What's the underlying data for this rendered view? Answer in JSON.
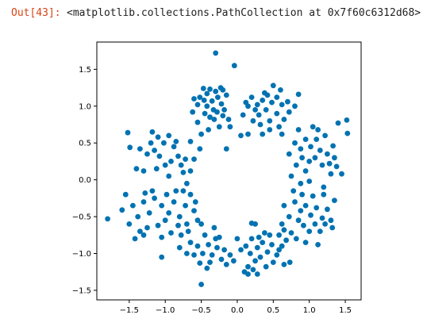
{
  "cell": {
    "prompt": "Out[43]:",
    "repr": "<matplotlib.collections.PathCollection at 0x7f60c6312d68>"
  },
  "colors": {
    "prompt": "#d84315",
    "marker": "#0072b2",
    "axes": "#000000"
  },
  "chart_data": {
    "type": "scatter",
    "title": "",
    "xlabel": "",
    "ylabel": "",
    "xlim": [
      -1.95,
      1.72
    ],
    "ylim": [
      -1.63,
      1.87
    ],
    "xticks": [
      -1.5,
      -1.0,
      -0.5,
      0.0,
      0.5,
      1.0,
      1.5
    ],
    "xtick_labels": [
      "−1.5",
      "−1.0",
      "−0.5",
      "0.0",
      "0.5",
      "1.0",
      "1.5"
    ],
    "yticks": [
      -1.5,
      -1.0,
      -0.5,
      0.0,
      0.5,
      1.0,
      1.5
    ],
    "ytick_labels": [
      "−1.5",
      "−1.0",
      "−0.5",
      "0.0",
      "0.5",
      "1.0",
      "1.5"
    ],
    "grid": false,
    "points": [
      {
        "x": -0.3,
        "y": 1.72
      },
      {
        "x": -0.04,
        "y": 1.55
      },
      {
        "x": -1.8,
        "y": -0.53
      },
      {
        "x": -1.6,
        "y": -0.41
      },
      {
        "x": -1.52,
        "y": 0.64
      },
      {
        "x": -1.49,
        "y": 0.44
      },
      {
        "x": 1.52,
        "y": 0.81
      },
      {
        "x": 1.53,
        "y": 0.63
      },
      {
        "x": 1.4,
        "y": 0.77
      },
      {
        "x": 1.45,
        "y": 0.08
      },
      {
        "x": 1.33,
        "y": 0.46
      },
      {
        "x": 1.38,
        "y": 0.18
      },
      {
        "x": -0.5,
        "y": -1.42
      },
      {
        "x": -0.52,
        "y": -1.13
      },
      {
        "x": -1.05,
        "y": -1.05
      },
      {
        "x": 0.15,
        "y": -1.28
      },
      {
        "x": 0.1,
        "y": -1.25
      },
      {
        "x": 0.28,
        "y": -1.28
      },
      {
        "x": 0.2,
        "y": -0.59
      },
      {
        "x": 0.25,
        "y": -0.6
      },
      {
        "x": 0.65,
        "y": -1.15
      },
      {
        "x": 0.73,
        "y": -1.12
      },
      {
        "x": -0.52,
        "y": 1.12
      },
      {
        "x": -0.46,
        "y": 1.08
      },
      {
        "x": -0.42,
        "y": 1.0
      },
      {
        "x": -0.35,
        "y": 1.07
      },
      {
        "x": -0.3,
        "y": 1.2
      },
      {
        "x": -0.27,
        "y": 1.12
      },
      {
        "x": -0.22,
        "y": 1.03
      },
      {
        "x": -0.18,
        "y": 0.95
      },
      {
        "x": -0.38,
        "y": 1.23
      },
      {
        "x": -0.47,
        "y": 1.24
      },
      {
        "x": -0.55,
        "y": 1.02
      },
      {
        "x": -0.6,
        "y": 1.1
      },
      {
        "x": -0.45,
        "y": 0.9
      },
      {
        "x": -0.32,
        "y": 0.82
      },
      {
        "x": -0.25,
        "y": 0.72
      },
      {
        "x": -0.4,
        "y": 0.68
      },
      {
        "x": -0.55,
        "y": 0.78
      },
      {
        "x": -0.5,
        "y": 0.62
      },
      {
        "x": -0.2,
        "y": 0.87
      },
      {
        "x": -0.12,
        "y": 0.82
      },
      {
        "x": -0.1,
        "y": 0.72
      },
      {
        "x": -0.33,
        "y": 0.95
      },
      {
        "x": -0.38,
        "y": 0.85
      },
      {
        "x": -0.28,
        "y": 0.92
      },
      {
        "x": -0.15,
        "y": 1.15
      },
      {
        "x": -0.2,
        "y": 1.22
      },
      {
        "x": -0.62,
        "y": 0.92
      },
      {
        "x": -0.65,
        "y": 0.52
      },
      {
        "x": -0.52,
        "y": 0.42
      },
      {
        "x": -0.6,
        "y": 0.28
      },
      {
        "x": -0.15,
        "y": 0.42
      },
      {
        "x": -0.42,
        "y": 1.17
      },
      {
        "x": -0.23,
        "y": 1.25
      },
      {
        "x": 0.12,
        "y": 1.05
      },
      {
        "x": 0.2,
        "y": 1.12
      },
      {
        "x": 0.28,
        "y": 1.02
      },
      {
        "x": 0.35,
        "y": 1.08
      },
      {
        "x": 0.42,
        "y": 1.15
      },
      {
        "x": 0.48,
        "y": 1.05
      },
      {
        "x": 0.55,
        "y": 1.12
      },
      {
        "x": 0.62,
        "y": 1.02
      },
      {
        "x": 0.4,
        "y": 0.95
      },
      {
        "x": 0.3,
        "y": 0.88
      },
      {
        "x": 0.22,
        "y": 0.8
      },
      {
        "x": 0.15,
        "y": 0.62
      },
      {
        "x": 0.32,
        "y": 0.75
      },
      {
        "x": 0.45,
        "y": 0.8
      },
      {
        "x": 0.55,
        "y": 0.9
      },
      {
        "x": 0.65,
        "y": 0.82
      },
      {
        "x": 0.72,
        "y": 0.92
      },
      {
        "x": 0.58,
        "y": 0.72
      },
      {
        "x": 0.5,
        "y": 1.28
      },
      {
        "x": 0.38,
        "y": 1.18
      },
      {
        "x": 0.25,
        "y": 0.95
      },
      {
        "x": 0.6,
        "y": 1.22
      },
      {
        "x": 0.7,
        "y": 1.06
      },
      {
        "x": 0.8,
        "y": 1.0
      },
      {
        "x": 0.85,
        "y": 1.16
      },
      {
        "x": 0.15,
        "y": 1.0
      },
      {
        "x": 0.08,
        "y": 0.88
      },
      {
        "x": 0.05,
        "y": 0.6
      },
      {
        "x": 0.35,
        "y": 0.62
      },
      {
        "x": 0.62,
        "y": 0.62
      },
      {
        "x": 0.45,
        "y": 0.68
      },
      {
        "x": -1.1,
        "y": 0.58
      },
      {
        "x": -1.02,
        "y": 0.5
      },
      {
        "x": -0.95,
        "y": 0.6
      },
      {
        "x": -0.88,
        "y": 0.45
      },
      {
        "x": -1.15,
        "y": 0.4
      },
      {
        "x": -1.08,
        "y": 0.32
      },
      {
        "x": -1.2,
        "y": 0.5
      },
      {
        "x": -1.25,
        "y": 0.35
      },
      {
        "x": -0.82,
        "y": 0.32
      },
      {
        "x": -0.78,
        "y": 0.2
      },
      {
        "x": -0.92,
        "y": 0.25
      },
      {
        "x": -1.0,
        "y": 0.2
      },
      {
        "x": -1.12,
        "y": 0.15
      },
      {
        "x": -1.3,
        "y": 0.12
      },
      {
        "x": -0.72,
        "y": 0.28
      },
      {
        "x": -0.75,
        "y": 0.1
      },
      {
        "x": -0.85,
        "y": 0.52
      },
      {
        "x": -1.18,
        "y": 0.65
      },
      {
        "x": -1.35,
        "y": 0.42
      },
      {
        "x": -1.4,
        "y": 0.15
      },
      {
        "x": -0.95,
        "y": 0.05
      },
      {
        "x": -0.65,
        "y": 0.12
      },
      {
        "x": -0.7,
        "y": -0.05
      },
      {
        "x": 0.8,
        "y": 0.5
      },
      {
        "x": 0.88,
        "y": 0.42
      },
      {
        "x": 0.95,
        "y": 0.55
      },
      {
        "x": 1.02,
        "y": 0.45
      },
      {
        "x": 1.1,
        "y": 0.55
      },
      {
        "x": 1.15,
        "y": 0.4
      },
      {
        "x": 1.22,
        "y": 0.6
      },
      {
        "x": 0.9,
        "y": 0.3
      },
      {
        "x": 1.0,
        "y": 0.25
      },
      {
        "x": 1.08,
        "y": 0.3
      },
      {
        "x": 1.18,
        "y": 0.2
      },
      {
        "x": 1.25,
        "y": 0.35
      },
      {
        "x": 0.82,
        "y": 0.2
      },
      {
        "x": 0.95,
        "y": 0.12
      },
      {
        "x": 1.3,
        "y": 0.08
      },
      {
        "x": 1.12,
        "y": 0.68
      },
      {
        "x": 0.85,
        "y": 0.68
      },
      {
        "x": 1.05,
        "y": 0.72
      },
      {
        "x": 0.72,
        "y": 0.35
      },
      {
        "x": 0.75,
        "y": 0.05
      },
      {
        "x": 0.88,
        "y": -0.05
      },
      {
        "x": 1.0,
        "y": -0.02
      },
      {
        "x": 1.2,
        "y": -0.1
      },
      {
        "x": 1.28,
        "y": 0.22
      },
      {
        "x": 1.35,
        "y": 0.3
      },
      {
        "x": -1.05,
        "y": -0.35
      },
      {
        "x": -0.95,
        "y": -0.45
      },
      {
        "x": -0.88,
        "y": -0.3
      },
      {
        "x": -0.8,
        "y": -0.5
      },
      {
        "x": -1.15,
        "y": -0.25
      },
      {
        "x": -1.22,
        "y": -0.45
      },
      {
        "x": -1.3,
        "y": -0.3
      },
      {
        "x": -1.38,
        "y": -0.5
      },
      {
        "x": -0.72,
        "y": -0.35
      },
      {
        "x": -0.65,
        "y": -0.2
      },
      {
        "x": -0.6,
        "y": -0.42
      },
      {
        "x": -0.75,
        "y": -0.15
      },
      {
        "x": -0.85,
        "y": -0.15
      },
      {
        "x": -1.0,
        "y": -0.55
      },
      {
        "x": -1.1,
        "y": -0.62
      },
      {
        "x": -1.25,
        "y": -0.65
      },
      {
        "x": -1.35,
        "y": -0.7
      },
      {
        "x": -1.45,
        "y": -0.35
      },
      {
        "x": -1.5,
        "y": -0.6
      },
      {
        "x": -1.42,
        "y": -0.8
      },
      {
        "x": -1.3,
        "y": -0.75
      },
      {
        "x": -0.92,
        "y": -0.72
      },
      {
        "x": -0.82,
        "y": -0.62
      },
      {
        "x": -0.7,
        "y": -0.6
      },
      {
        "x": -0.55,
        "y": -0.55
      },
      {
        "x": -0.58,
        "y": -0.3
      },
      {
        "x": -1.18,
        "y": -0.15
      },
      {
        "x": -1.28,
        "y": -0.18
      },
      {
        "x": -1.55,
        "y": -0.2
      },
      {
        "x": -0.98,
        "y": -0.2
      },
      {
        "x": -0.78,
        "y": -0.75
      },
      {
        "x": -0.68,
        "y": -0.7
      },
      {
        "x": -1.05,
        "y": -0.78
      },
      {
        "x": 0.8,
        "y": -0.3
      },
      {
        "x": 0.88,
        "y": -0.42
      },
      {
        "x": 0.95,
        "y": -0.35
      },
      {
        "x": 1.02,
        "y": -0.48
      },
      {
        "x": 1.1,
        "y": -0.38
      },
      {
        "x": 1.18,
        "y": -0.52
      },
      {
        "x": 1.25,
        "y": -0.4
      },
      {
        "x": 0.85,
        "y": -0.55
      },
      {
        "x": 0.92,
        "y": -0.62
      },
      {
        "x": 1.0,
        "y": -0.7
      },
      {
        "x": 1.08,
        "y": -0.6
      },
      {
        "x": 1.15,
        "y": -0.7
      },
      {
        "x": 1.22,
        "y": -0.6
      },
      {
        "x": 1.3,
        "y": -0.55
      },
      {
        "x": 0.78,
        "y": -0.15
      },
      {
        "x": 0.9,
        "y": -0.2
      },
      {
        "x": 1.05,
        "y": -0.22
      },
      {
        "x": 0.72,
        "y": -0.5
      },
      {
        "x": 0.75,
        "y": -0.72
      },
      {
        "x": 0.82,
        "y": -0.8
      },
      {
        "x": 1.35,
        "y": -0.28
      },
      {
        "x": 1.32,
        "y": -0.65
      },
      {
        "x": 0.95,
        "y": -0.85
      },
      {
        "x": 1.12,
        "y": -0.88
      },
      {
        "x": 1.2,
        "y": -0.2
      },
      {
        "x": -0.55,
        "y": -0.9
      },
      {
        "x": -0.48,
        "y": -1.0
      },
      {
        "x": -0.4,
        "y": -0.88
      },
      {
        "x": -0.35,
        "y": -1.02
      },
      {
        "x": -0.28,
        "y": -0.92
      },
      {
        "x": -0.22,
        "y": -1.08
      },
      {
        "x": -0.45,
        "y": -0.75
      },
      {
        "x": -0.6,
        "y": -1.02
      },
      {
        "x": -0.65,
        "y": -0.85
      },
      {
        "x": -0.38,
        "y": -1.12
      },
      {
        "x": -0.3,
        "y": -0.8
      },
      {
        "x": -0.18,
        "y": -0.95
      },
      {
        "x": -0.15,
        "y": -1.15
      },
      {
        "x": -0.1,
        "y": -1.02
      },
      {
        "x": -0.05,
        "y": -1.1
      },
      {
        "x": -0.32,
        "y": -0.65
      },
      {
        "x": -0.5,
        "y": -0.6
      },
      {
        "x": -0.7,
        "y": -1.0
      },
      {
        "x": -0.8,
        "y": -0.92
      },
      {
        "x": -0.25,
        "y": -0.78
      },
      {
        "x": -0.42,
        "y": -1.2
      },
      {
        "x": 0.0,
        "y": -0.8
      },
      {
        "x": 0.05,
        "y": -0.95
      },
      {
        "x": 0.2,
        "y": -0.8
      },
      {
        "x": 0.28,
        "y": -0.92
      },
      {
        "x": 0.35,
        "y": -0.85
      },
      {
        "x": 0.42,
        "y": -0.98
      },
      {
        "x": 0.48,
        "y": -0.88
      },
      {
        "x": 0.55,
        "y": -1.02
      },
      {
        "x": 0.62,
        "y": -0.9
      },
      {
        "x": 0.25,
        "y": -1.1
      },
      {
        "x": 0.32,
        "y": -1.05
      },
      {
        "x": 0.4,
        "y": -1.18
      },
      {
        "x": 0.18,
        "y": -1.0
      },
      {
        "x": 0.12,
        "y": -0.9
      },
      {
        "x": 0.58,
        "y": -0.75
      },
      {
        "x": 0.65,
        "y": -0.68
      },
      {
        "x": 0.68,
        "y": -0.82
      },
      {
        "x": 0.45,
        "y": -0.75
      },
      {
        "x": 0.38,
        "y": -0.72
      },
      {
        "x": 0.5,
        "y": -1.12
      },
      {
        "x": 0.3,
        "y": -0.78
      },
      {
        "x": 0.15,
        "y": -1.18
      },
      {
        "x": 0.22,
        "y": -1.22
      },
      {
        "x": 0.58,
        "y": -0.95
      },
      {
        "x": 0.65,
        "y": -0.35
      },
      {
        "x": 0.62,
        "y": -0.6
      }
    ]
  }
}
